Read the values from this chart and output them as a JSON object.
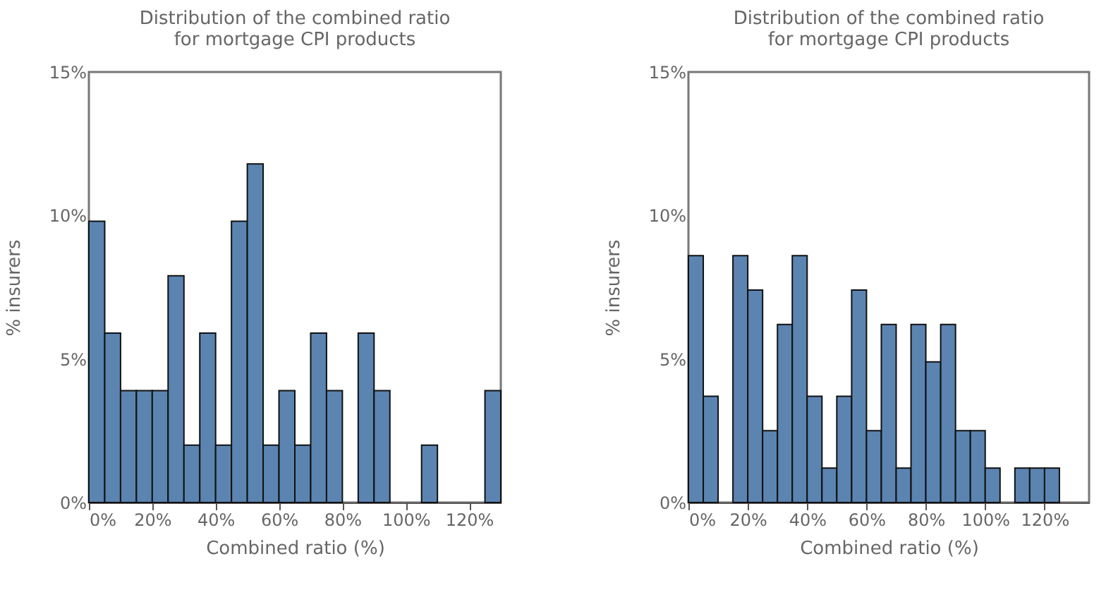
{
  "chart_data": [
    {
      "type": "histogram",
      "title": [
        "Distribution of the combined ratio",
        "for mortgage CPI products"
      ],
      "xlabel": "Combined ratio (%)",
      "ylabel": "% insurers",
      "color": "#5b84b1",
      "bins": [
        0,
        5,
        10,
        15,
        20,
        25,
        30,
        35,
        40,
        45,
        50,
        55,
        60,
        65,
        70,
        75,
        80,
        85,
        90,
        95,
        100,
        105,
        110,
        115,
        120,
        125,
        130
      ],
      "values": [
        9.8,
        5.9,
        3.9,
        3.9,
        3.9,
        7.9,
        2.0,
        5.9,
        2.0,
        9.8,
        11.8,
        2.0,
        3.9,
        2.0,
        5.9,
        3.9,
        0,
        5.9,
        3.9,
        0,
        0,
        2.0,
        0,
        0,
        0,
        3.9
      ],
      "xlim": [
        0,
        130
      ],
      "ylim": [
        0,
        15
      ],
      "xticks": [
        {
          "value": 0,
          "label": "0%"
        },
        {
          "value": 20,
          "label": "20%"
        },
        {
          "value": 40,
          "label": "40%"
        },
        {
          "value": 60,
          "label": "60%"
        },
        {
          "value": 80,
          "label": "80%"
        },
        {
          "value": 100,
          "label": "100%"
        },
        {
          "value": 120,
          "label": "120%"
        }
      ],
      "yticks": [
        {
          "value": 0,
          "label": "0%"
        },
        {
          "value": 5,
          "label": "5%"
        },
        {
          "value": 10,
          "label": "10%"
        },
        {
          "value": 15,
          "label": "15%"
        }
      ],
      "grid": false
    },
    {
      "type": "histogram",
      "title": [
        "Distribution of the combined ratio",
        "for mortgage CPI products"
      ],
      "xlabel": "Combined ratio (%)",
      "ylabel": "% insurers",
      "color": "#5b84b1",
      "bins": [
        0,
        5,
        10,
        15,
        20,
        25,
        30,
        35,
        40,
        45,
        50,
        55,
        60,
        65,
        70,
        75,
        80,
        85,
        90,
        95,
        100,
        105,
        110,
        115,
        120,
        125
      ],
      "values": [
        8.6,
        3.7,
        0,
        8.6,
        7.4,
        2.5,
        6.2,
        8.6,
        3.7,
        1.2,
        3.7,
        7.4,
        2.5,
        6.2,
        1.2,
        6.2,
        4.9,
        6.2,
        2.5,
        2.5,
        1.2,
        0,
        1.2,
        1.2,
        1.2
      ],
      "xlim": [
        0,
        135
      ],
      "ylim": [
        0,
        15
      ],
      "xticks": [
        {
          "value": 0,
          "label": "0%"
        },
        {
          "value": 20,
          "label": "20%"
        },
        {
          "value": 40,
          "label": "40%"
        },
        {
          "value": 60,
          "label": "60%"
        },
        {
          "value": 80,
          "label": "80%"
        },
        {
          "value": 100,
          "label": "100%"
        },
        {
          "value": 120,
          "label": "120%"
        }
      ],
      "yticks": [
        {
          "value": 0,
          "label": "0%"
        },
        {
          "value": 5,
          "label": "5%"
        },
        {
          "value": 10,
          "label": "10%"
        },
        {
          "value": 15,
          "label": "15%"
        }
      ],
      "grid": false
    }
  ]
}
